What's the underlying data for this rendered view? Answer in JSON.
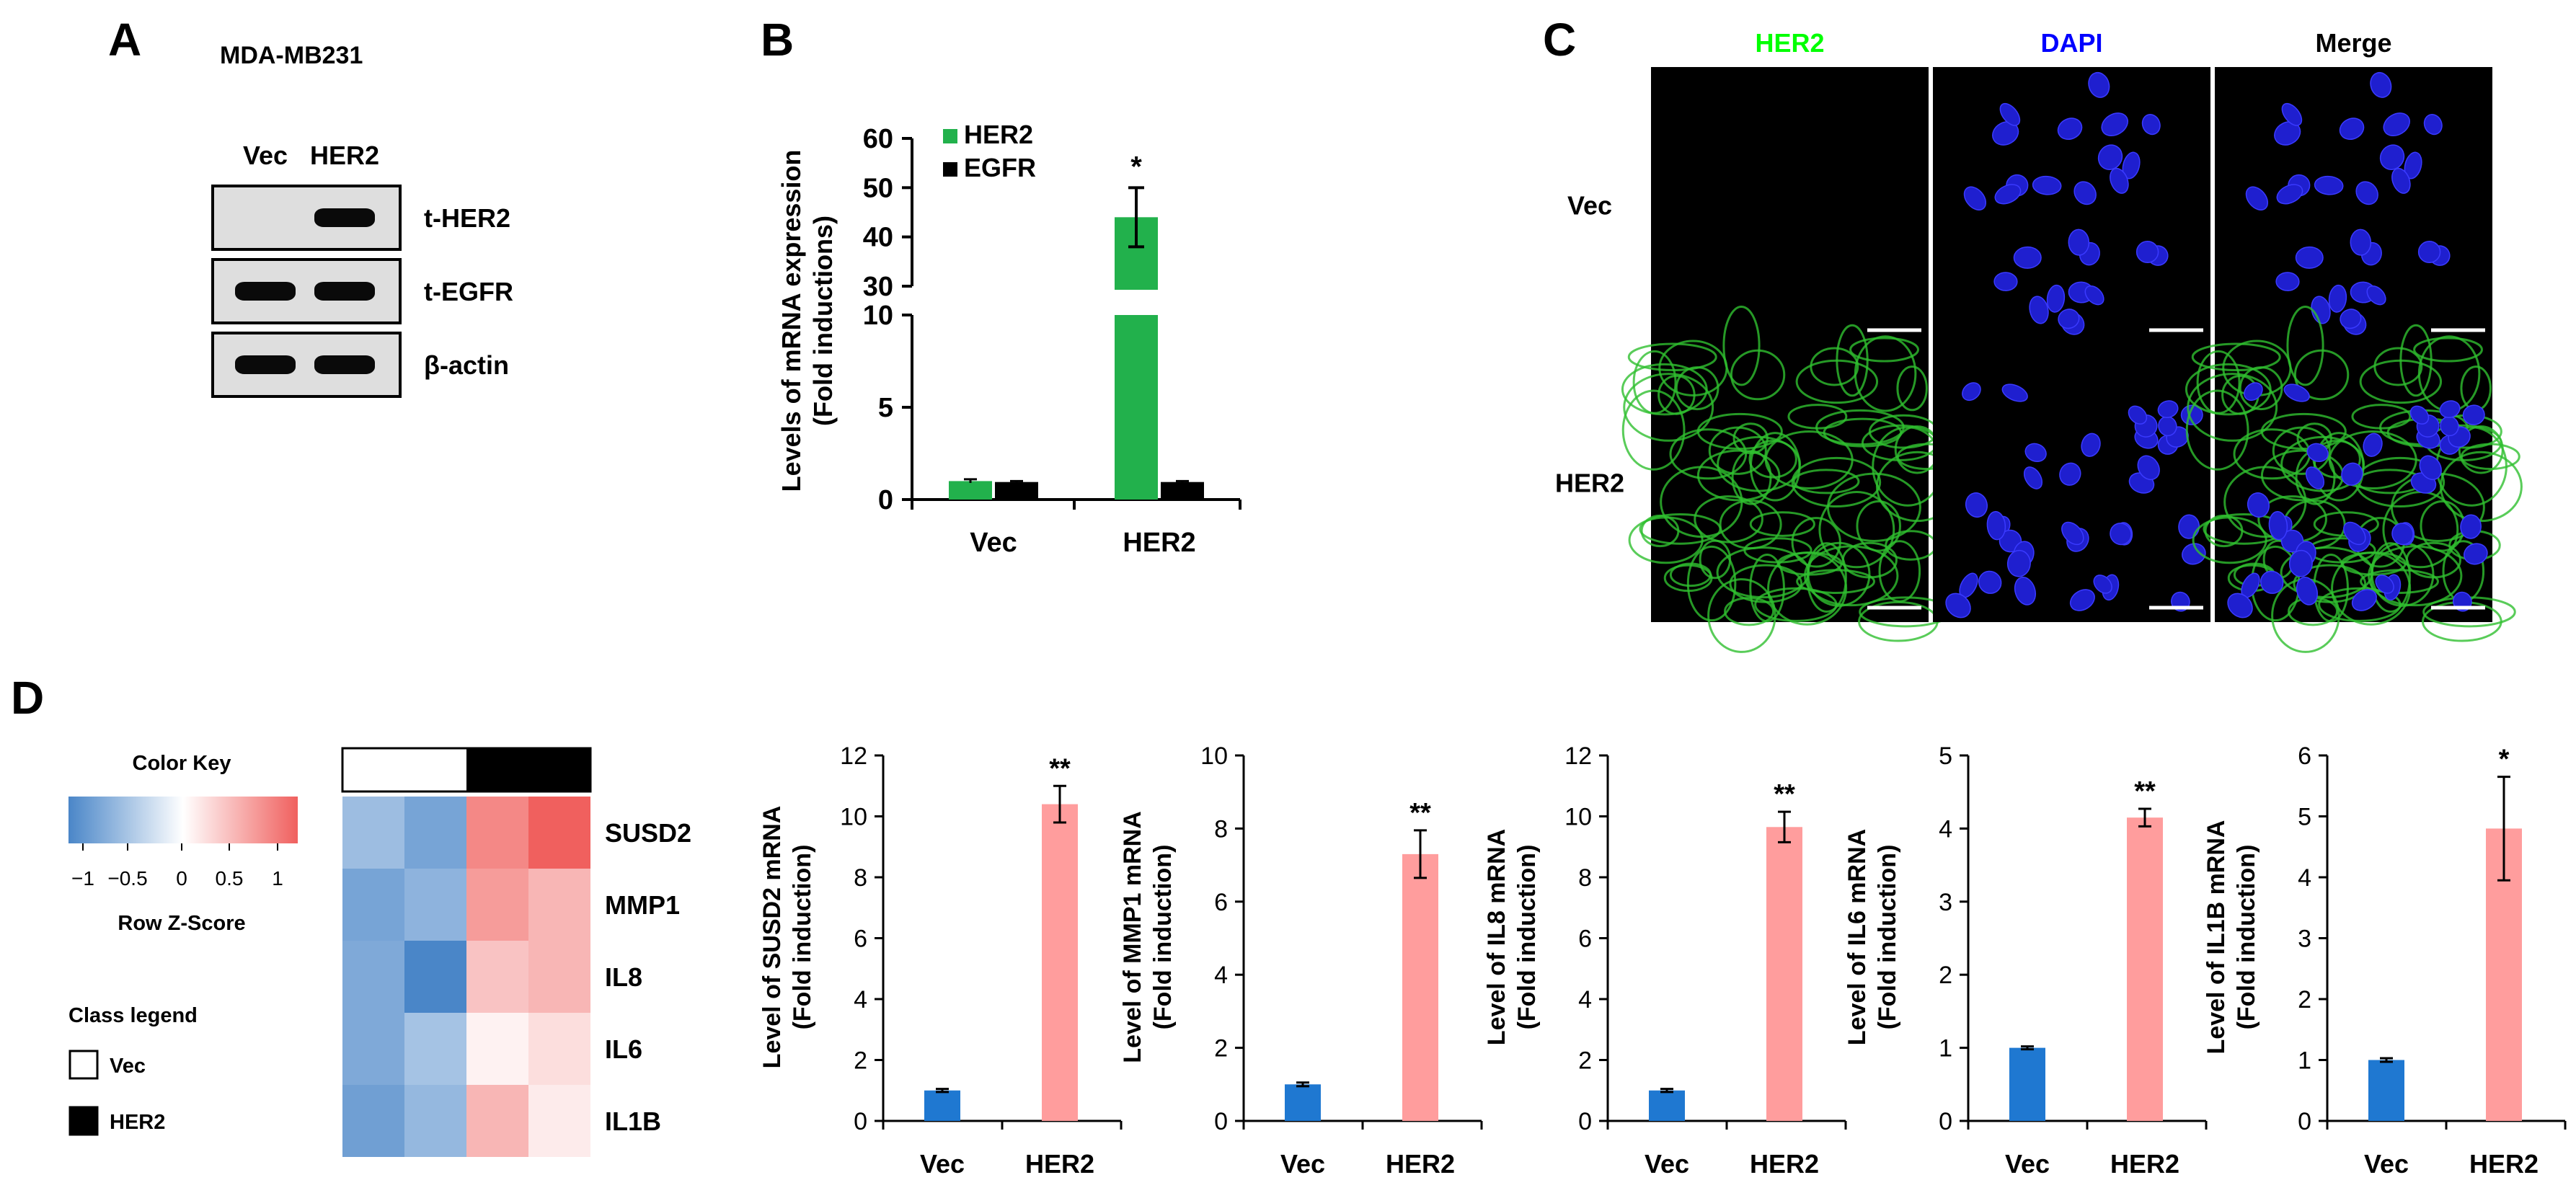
{
  "panels": {
    "A": {
      "letter": "A",
      "cell_line": "MDA-MB231",
      "columns": [
        "Vec",
        "HER2"
      ],
      "bands": [
        {
          "label": "t-HER2",
          "present": [
            false,
            true
          ]
        },
        {
          "label": "t-EGFR",
          "present": [
            true,
            true
          ]
        },
        {
          "label": "β-actin",
          "present": [
            true,
            true
          ]
        }
      ]
    },
    "B": {
      "letter": "B"
    },
    "C": {
      "letter": "C",
      "columns": [
        {
          "label": "HER2",
          "color": "#00ff00"
        },
        {
          "label": "DAPI",
          "color": "#0000ff"
        },
        {
          "label": "Merge",
          "color": "#000000"
        }
      ],
      "rows": [
        "Vec",
        "HER2"
      ]
    },
    "D": {
      "letter": "D",
      "color_key": {
        "title": "Color Key",
        "ticks": [
          "−1",
          "−0.5",
          "0",
          "0.5",
          "1"
        ],
        "subtitle": "Row Z-Score",
        "low_color": "#4a86c8",
        "high_color": "#f0605e"
      },
      "class_legend": {
        "title": "Class legend",
        "items": [
          {
            "label": "Vec",
            "fill": "#ffffff"
          },
          {
            "label": "HER2",
            "fill": "#000000"
          }
        ]
      }
    }
  },
  "chart_data": [
    {
      "type": "bar",
      "panel": "B",
      "categories": [
        "Vec",
        "HER2"
      ],
      "series": [
        {
          "name": "HER2",
          "color": "#22b14c",
          "values": [
            1.0,
            44.0
          ],
          "errors": [
            0.1,
            6.0
          ]
        },
        {
          "name": "EGFR",
          "color": "#000000",
          "values": [
            0.95,
            0.95
          ],
          "errors": [
            0.05,
            0.05
          ]
        }
      ],
      "ylabel": [
        "Levels of mRNA expression",
        "(Fold inductions)"
      ],
      "broken_axis": true,
      "lower_ylim": [
        0,
        10
      ],
      "lower_ticks": [
        0,
        5,
        10
      ],
      "upper_ylim": [
        30,
        60
      ],
      "upper_ticks": [
        30,
        40,
        50,
        60
      ],
      "significance": [
        "",
        "*"
      ],
      "legend_position": "top-left"
    },
    {
      "type": "bar",
      "panel": "D1",
      "categories": [
        "Vec",
        "HER2"
      ],
      "values": [
        1.0,
        10.4
      ],
      "errors": [
        0.05,
        0.6
      ],
      "colors": [
        "#1f78d1",
        "#ff9d9d"
      ],
      "ylabel": [
        "Level of SUSD2 mRNA",
        "(Fold induction)"
      ],
      "ylim": [
        0,
        12
      ],
      "yticks": [
        0,
        2,
        4,
        6,
        8,
        10,
        12
      ],
      "significance": [
        "",
        "**"
      ]
    },
    {
      "type": "bar",
      "panel": "D2",
      "categories": [
        "Vec",
        "HER2"
      ],
      "values": [
        1.0,
        7.3
      ],
      "errors": [
        0.05,
        0.65
      ],
      "colors": [
        "#1f78d1",
        "#ff9d9d"
      ],
      "ylabel": [
        "Level of MMP1 mRNA",
        "(Fold induction)"
      ],
      "ylim": [
        0,
        10
      ],
      "yticks": [
        0,
        2,
        4,
        6,
        8,
        10
      ],
      "significance": [
        "",
        "**"
      ]
    },
    {
      "type": "bar",
      "panel": "D3",
      "categories": [
        "Vec",
        "HER2"
      ],
      "values": [
        1.0,
        9.65
      ],
      "errors": [
        0.05,
        0.5
      ],
      "colors": [
        "#1f78d1",
        "#ff9d9d"
      ],
      "ylabel": [
        "Level of IL8 mRNA",
        "(Fold induction)"
      ],
      "ylim": [
        0,
        12
      ],
      "yticks": [
        0,
        2,
        4,
        6,
        8,
        10,
        12
      ],
      "significance": [
        "",
        "**"
      ]
    },
    {
      "type": "bar",
      "panel": "D4",
      "categories": [
        "Vec",
        "HER2"
      ],
      "values": [
        1.0,
        4.15
      ],
      "errors": [
        0.02,
        0.12
      ],
      "colors": [
        "#1f78d1",
        "#ff9d9d"
      ],
      "ylabel": [
        "Level of IL6 mRNA",
        "(Fold induction)"
      ],
      "ylim": [
        0,
        5
      ],
      "yticks": [
        0,
        1,
        2,
        3,
        4,
        5
      ],
      "significance": [
        "",
        "**"
      ]
    },
    {
      "type": "bar",
      "panel": "D5",
      "categories": [
        "Vec",
        "HER2"
      ],
      "values": [
        1.0,
        4.8
      ],
      "errors": [
        0.03,
        0.85
      ],
      "colors": [
        "#1f78d1",
        "#ff9d9d"
      ],
      "ylabel": [
        "Level of IL1B mRNA",
        "(Fold induction)"
      ],
      "ylim": [
        0,
        6
      ],
      "yticks": [
        0,
        1,
        2,
        3,
        4,
        5,
        6
      ],
      "significance": [
        "",
        "*"
      ]
    },
    {
      "type": "heatmap",
      "panel": "D-heatmap",
      "columns": [
        "Vec",
        "Vec",
        "HER2",
        "HER2"
      ],
      "rows": [
        "SUSD2",
        "MMP1",
        "IL8",
        "IL6",
        "IL1B"
      ],
      "values": [
        [
          -0.65,
          -0.9,
          0.9,
          1.2
        ],
        [
          -0.9,
          -0.75,
          0.75,
          0.55
        ],
        [
          -0.85,
          -1.25,
          0.45,
          0.55
        ],
        [
          -0.85,
          -0.6,
          0.1,
          0.25
        ],
        [
          -0.95,
          -0.7,
          0.55,
          0.15
        ]
      ],
      "range": [
        -1.2,
        1.2
      ]
    }
  ]
}
